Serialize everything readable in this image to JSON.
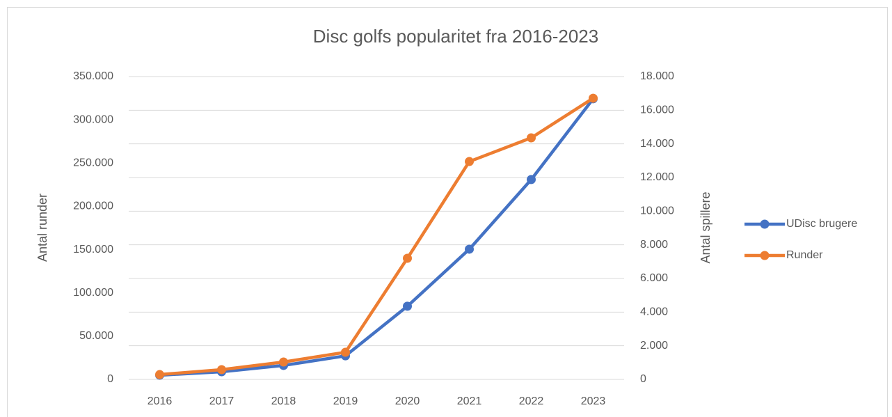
{
  "chart_data": {
    "type": "line",
    "title": "Disc golfs popularitet fra 2016-2023",
    "categories": [
      "2016",
      "2017",
      "2018",
      "2019",
      "2020",
      "2021",
      "2022",
      "2023"
    ],
    "y_label": "Antal runder",
    "y2_label": "Antal spillere",
    "ylim": [
      0,
      350000
    ],
    "yticks": [
      0,
      {
        "value": 50000,
        "label": "50.000"
      },
      {
        "value": 100000,
        "label": "100.000"
      },
      {
        "value": 150000,
        "label": "150.000"
      },
      {
        "value": 200000,
        "label": "200.000"
      },
      {
        "value": 250000,
        "label": "250.000"
      },
      {
        "value": 300000,
        "label": "300.000"
      },
      {
        "value": 350000,
        "label": "350.000"
      }
    ],
    "y2lim": [
      0,
      18000
    ],
    "y2ticks": [
      0,
      {
        "value": 2000,
        "label": "2.000"
      },
      {
        "value": 4000,
        "label": "4.000"
      },
      {
        "value": 6000,
        "label": "6.000"
      },
      {
        "value": 8000,
        "label": "8.000"
      },
      {
        "value": 10000,
        "label": "10.000"
      },
      {
        "value": 12000,
        "label": "12.000"
      },
      {
        "value": 14000,
        "label": "14.000"
      },
      {
        "value": 16000,
        "label": "16.000"
      },
      {
        "value": 18000,
        "label": "18.000"
      }
    ],
    "grid": "y2",
    "legend": "right",
    "series": [
      {
        "name": "UDisc brugere",
        "color": "#4472c4",
        "axis": "y2",
        "values": [
          250,
          455,
          830,
          1400,
          4350,
          7740,
          11880,
          16680
        ]
      },
      {
        "name": "Runder",
        "color": "#ed7d31",
        "values": [
          5600,
          11300,
          20100,
          31400,
          140000,
          251800,
          279200,
          325000
        ]
      }
    ]
  }
}
